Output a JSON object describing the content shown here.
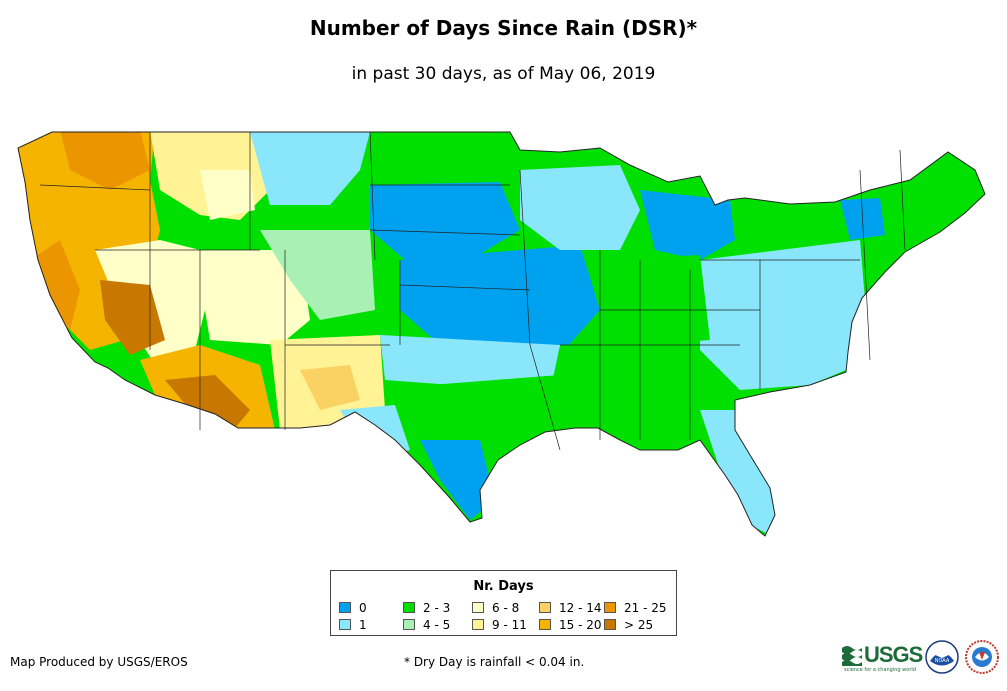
{
  "title": "Number of Days Since Rain (DSR)*",
  "subtitle": "in past 30 days, as of May 06, 2019",
  "legend": {
    "title": "Nr. Days",
    "items": [
      {
        "label": "0",
        "color": "#00a2f0"
      },
      {
        "label": "1",
        "color": "#8ae6fa"
      },
      {
        "label": "2 - 3",
        "color": "#00e000"
      },
      {
        "label": "4 - 5",
        "color": "#a8f0b4"
      },
      {
        "label": "6 - 8",
        "color": "#ffffc8"
      },
      {
        "label": "9 - 11",
        "color": "#fff396"
      },
      {
        "label": "12 - 14",
        "color": "#fad264"
      },
      {
        "label": "15 - 20",
        "color": "#f5b400"
      },
      {
        "label": "21 - 25",
        "color": "#eb9600"
      },
      {
        "label": "> 25",
        "color": "#c87800"
      }
    ]
  },
  "credit": "Map Produced by USGS/EROS",
  "footnote": "* Dry Day is rainfall < 0.04 in.",
  "logos": {
    "usgs_text": "USGS",
    "usgs_tagline": "science for a changing world",
    "noaa_text": "NOAA",
    "nws_icon": "nws-logo-icon"
  }
}
